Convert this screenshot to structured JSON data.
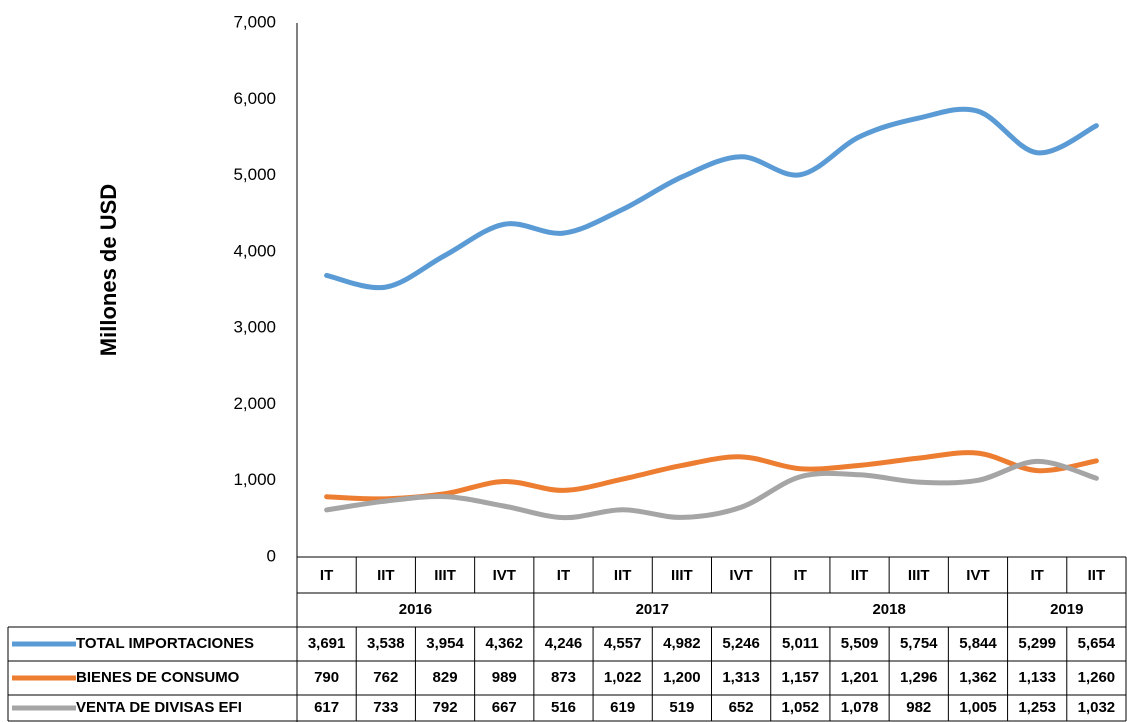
{
  "chart_data": {
    "type": "line",
    "ylabel": "Millones de USD",
    "groups": [
      {
        "label": "2016",
        "categories": [
          "IT",
          "IIT",
          "IIIT",
          "IVT"
        ]
      },
      {
        "label": "2017",
        "categories": [
          "IT",
          "IIT",
          "IIIT",
          "IVT"
        ]
      },
      {
        "label": "2018",
        "categories": [
          "IT",
          "IIT",
          "IIIT",
          "IVT"
        ]
      },
      {
        "label": "2019",
        "categories": [
          "IT",
          "IIT"
        ]
      }
    ],
    "series": [
      {
        "name": "TOTAL IMPORTACIONES",
        "color": "#5b9bd5",
        "values": [
          3691,
          3538,
          3954,
          4362,
          4246,
          4557,
          4982,
          5246,
          5011,
          5509,
          5754,
          5844,
          5299,
          5654
        ],
        "value_labels": [
          "3,691",
          "3,538",
          "3,954",
          "4,362",
          "4,246",
          "4,557",
          "4,982",
          "5,246",
          "5,011",
          "5,509",
          "5,754",
          "5,844",
          "5,299",
          "5,654"
        ]
      },
      {
        "name": "BIENES DE CONSUMO",
        "color": "#ed7d31",
        "values": [
          790,
          762,
          829,
          989,
          873,
          1022,
          1200,
          1313,
          1157,
          1201,
          1296,
          1362,
          1133,
          1260
        ],
        "value_labels": [
          "790",
          "762",
          "829",
          "989",
          "873",
          "1,022",
          "1,200",
          "1,313",
          "1,157",
          "1,201",
          "1,296",
          "1,362",
          "1,133",
          "1,260"
        ]
      },
      {
        "name": "VENTA DE DIVISAS EFI",
        "color": "#a5a5a5",
        "values": [
          617,
          733,
          792,
          667,
          516,
          619,
          519,
          652,
          1052,
          1078,
          982,
          1005,
          1253,
          1032
        ],
        "value_labels": [
          "617",
          "733",
          "792",
          "667",
          "516",
          "619",
          "519",
          "652",
          "1,052",
          "1,078",
          "982",
          "1,005",
          "1,253",
          "1,032"
        ]
      }
    ],
    "ylim": [
      0,
      7000
    ],
    "yticks": [
      0,
      {
        "value": 1000,
        "label": "1,000"
      },
      {
        "value": 2000,
        "label": "2,000"
      },
      {
        "value": 3000,
        "label": "3,000"
      },
      {
        "value": 4000,
        "label": "4,000"
      },
      {
        "value": 5000,
        "label": "5,000"
      },
      {
        "value": 6000,
        "label": "6,000"
      },
      {
        "value": 7000,
        "label": "7,000"
      }
    ],
    "grid": false
  }
}
